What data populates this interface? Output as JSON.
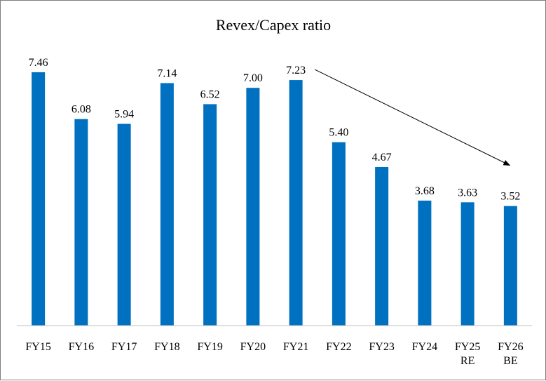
{
  "chart_data": {
    "type": "bar",
    "title": "Revex/Capex ratio",
    "xlabel": "",
    "ylabel": "",
    "categories": [
      [
        "FY15"
      ],
      [
        "FY16"
      ],
      [
        "FY17"
      ],
      [
        "FY18"
      ],
      [
        "FY19"
      ],
      [
        "FY20"
      ],
      [
        "FY21"
      ],
      [
        "FY22"
      ],
      [
        "FY23"
      ],
      [
        "FY24"
      ],
      [
        "FY25",
        "RE"
      ],
      [
        "FY26",
        "BE"
      ]
    ],
    "values": [
      7.46,
      6.08,
      5.94,
      7.14,
      6.52,
      7.0,
      7.23,
      5.4,
      4.67,
      3.68,
      3.63,
      3.52
    ],
    "value_labels": [
      "7.46",
      "6.08",
      "5.94",
      "7.14",
      "6.52",
      "7.00",
      "7.23",
      "5.40",
      "4.67",
      "3.68",
      "3.63",
      "3.52"
    ],
    "ylim": [
      0,
      8
    ],
    "grid": false,
    "legend": "none",
    "bar_color": "#0070C0",
    "annotation": {
      "type": "arrow",
      "from_category": "FY21",
      "to_category": "FY26",
      "color": "#000000"
    }
  }
}
